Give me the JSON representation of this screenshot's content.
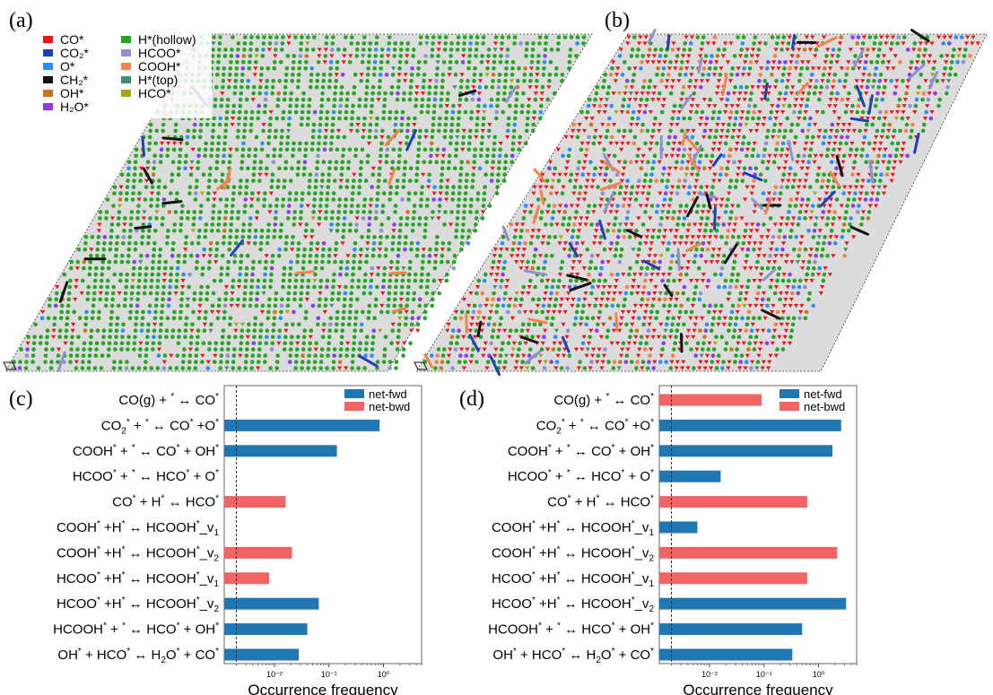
{
  "panels": {
    "a": {
      "label": "(a)"
    },
    "b": {
      "label": "(b)"
    },
    "c": {
      "label": "(c)"
    },
    "d": {
      "label": "(d)"
    }
  },
  "lattice_legend": [
    {
      "label": "CO*",
      "color": "#e8161b"
    },
    {
      "label": "CO₂*",
      "color": "#1f3fb5"
    },
    {
      "label": "O*",
      "color": "#2a8ff5"
    },
    {
      "label": "CH₂*",
      "color": "#111111"
    },
    {
      "label": "OH*",
      "color": "#c87619"
    },
    {
      "label": "H₂O*",
      "color": "#8a3ee8"
    },
    {
      "label": "H*(hollow)",
      "color": "#27a326"
    },
    {
      "label": "HCOO*",
      "color": "#8f8fd4"
    },
    {
      "label": "COOH*",
      "color": "#f6814a"
    },
    {
      "label": "H*(top)",
      "color": "#3d8c7a"
    },
    {
      "label": "HCO*",
      "color": "#a8a512"
    }
  ],
  "lattice_background": "#dcdcdc",
  "chart_data": [
    {
      "panel": "c",
      "type": "bar",
      "orientation": "horizontal",
      "xscale": "log",
      "xlabel": "Occurrence frequency",
      "xlim": [
        0.0012,
        5
      ],
      "xticks": [
        {
          "v": 0.01,
          "label": "10⁻²"
        },
        {
          "v": 0.1,
          "label": "10⁻¹"
        },
        {
          "v": 1,
          "label": "10⁰"
        }
      ],
      "reference_line": 0.002,
      "legend": [
        {
          "name": "net-fwd",
          "color": "#1f77b4"
        },
        {
          "name": "net-bwd",
          "color": "#f06464"
        }
      ],
      "categories": [
        "CO(g) + * ↔ CO*",
        "CO2* + * ↔ CO* +O*",
        "COOH* + * ↔ CO* + OH*",
        "HCOO* + * ↔ HCO* + O*",
        "CO* + H* ↔ HCO*",
        "COOH* +H* ↔ HCOOH*_v1",
        "COOH* +H* ↔ HCOOH*_v2",
        "HCOO* +H* ↔ HCOOH*_v1",
        "HCOO* +H* ↔ HCOOH*_v2",
        "HCOOH* + * ↔ HCO* + OH*",
        "OH* + HCO* ↔ H2O* + CO*"
      ],
      "values": [
        null,
        0.85,
        0.14,
        null,
        0.016,
        null,
        0.021,
        0.008,
        0.065,
        0.04,
        0.028
      ],
      "direction": [
        null,
        "net-fwd",
        "net-fwd",
        null,
        "net-bwd",
        null,
        "net-bwd",
        "net-bwd",
        "net-fwd",
        "net-fwd",
        "net-fwd"
      ]
    },
    {
      "panel": "d",
      "type": "bar",
      "orientation": "horizontal",
      "xscale": "log",
      "xlabel": "Occurrence frequency",
      "xlim": [
        0.0012,
        5
      ],
      "xticks": [
        {
          "v": 0.01,
          "label": "10⁻²"
        },
        {
          "v": 0.1,
          "label": "10⁻¹"
        },
        {
          "v": 1,
          "label": "10⁰"
        }
      ],
      "reference_line": 0.002,
      "legend": [
        {
          "name": "net-fwd",
          "color": "#1f77b4"
        },
        {
          "name": "net-bwd",
          "color": "#f06464"
        }
      ],
      "categories": [
        "CO(g) + * ↔ CO*",
        "CO2* + * ↔ CO* +O*",
        "COOH* + * ↔ CO* + OH*",
        "HCOO* + * ↔ HCO* + O*",
        "CO* + H* ↔ HCO*",
        "COOH* +H* ↔ HCOOH*_v1",
        "COOH* +H* ↔ HCOOH*_v2",
        "HCOO* +H* ↔ HCOOH*_v1",
        "HCOO* +H* ↔ HCOOH*_v2",
        "HCOOH* + * ↔ HCO* + OH*",
        "OH* + HCO* ↔ H2O* + CO*"
      ],
      "values": [
        0.09,
        2.6,
        1.8,
        0.016,
        0.62,
        0.006,
        2.2,
        0.62,
        3.2,
        0.5,
        0.33
      ],
      "direction": [
        "net-bwd",
        "net-fwd",
        "net-fwd",
        "net-fwd",
        "net-bwd",
        "net-fwd",
        "net-bwd",
        "net-bwd",
        "net-fwd",
        "net-fwd",
        "net-fwd"
      ]
    }
  ]
}
